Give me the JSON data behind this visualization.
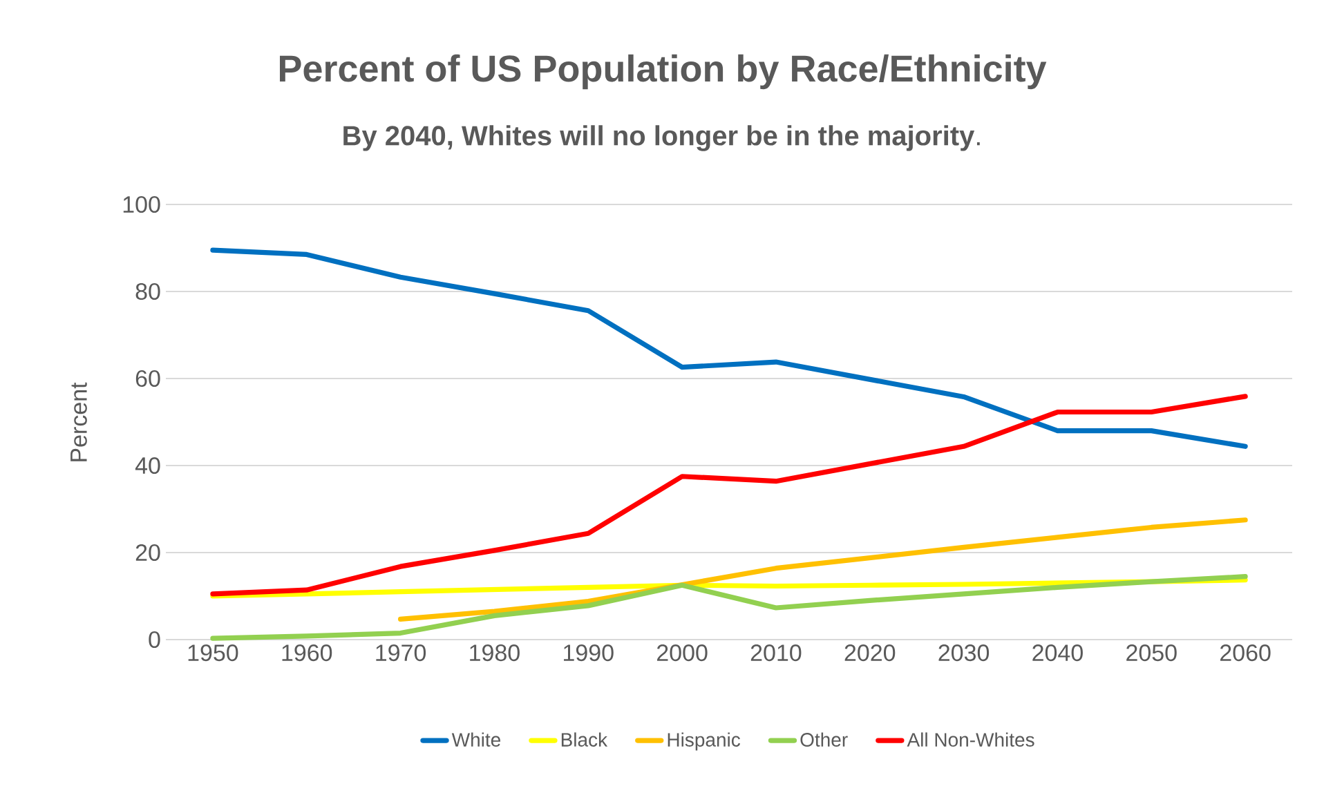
{
  "chart_data": {
    "type": "line",
    "title": "Percent of US Population by Race/Ethnicity",
    "subtitle": "**By 2040, Whites will no longer be in the majority**.",
    "ylabel": "Percent",
    "categories": [
      "1950",
      "1960",
      "1970",
      "1980",
      "1990",
      "2000",
      "2010",
      "2020",
      "2030",
      "2040",
      "2050",
      "2060"
    ],
    "series": [
      {
        "name": "White",
        "color": "#0070c0",
        "values": [
          89.5,
          88.5,
          83.3,
          79.5,
          75.6,
          62.6,
          63.8,
          59.8,
          55.8,
          48,
          48,
          44.4
        ]
      },
      {
        "name": "Black",
        "color": "#ffff00",
        "values": [
          10,
          10.5,
          11,
          11.5,
          12,
          12.5,
          12.3,
          12.5,
          12.7,
          13,
          13.3,
          13.7
        ]
      },
      {
        "name": "Hispanic",
        "color": "#ffc000",
        "values": [
          null,
          null,
          4.7,
          6.5,
          8.8,
          12.6,
          16.4,
          18.8,
          21.2,
          23.5,
          25.8,
          27.5
        ]
      },
      {
        "name": "Other",
        "color": "#92d050",
        "values": [
          0.3,
          0.8,
          1.5,
          5.5,
          7.8,
          12.5,
          7.3,
          9.0,
          10.5,
          12,
          13.3,
          14.5
        ]
      },
      {
        "name": "All Non-Whites",
        "color": "#ff0000",
        "values": [
          10.5,
          11.4,
          16.8,
          20.5,
          24.4,
          37.5,
          36.4,
          40.4,
          44.4,
          52.3,
          52.3,
          55.9
        ]
      }
    ],
    "ylim": [
      0,
      100
    ],
    "yticks": [
      0,
      20,
      40,
      60,
      80,
      100
    ],
    "grid": "y",
    "legend": "bottom",
    "marker": "none",
    "line_style": "solid"
  }
}
